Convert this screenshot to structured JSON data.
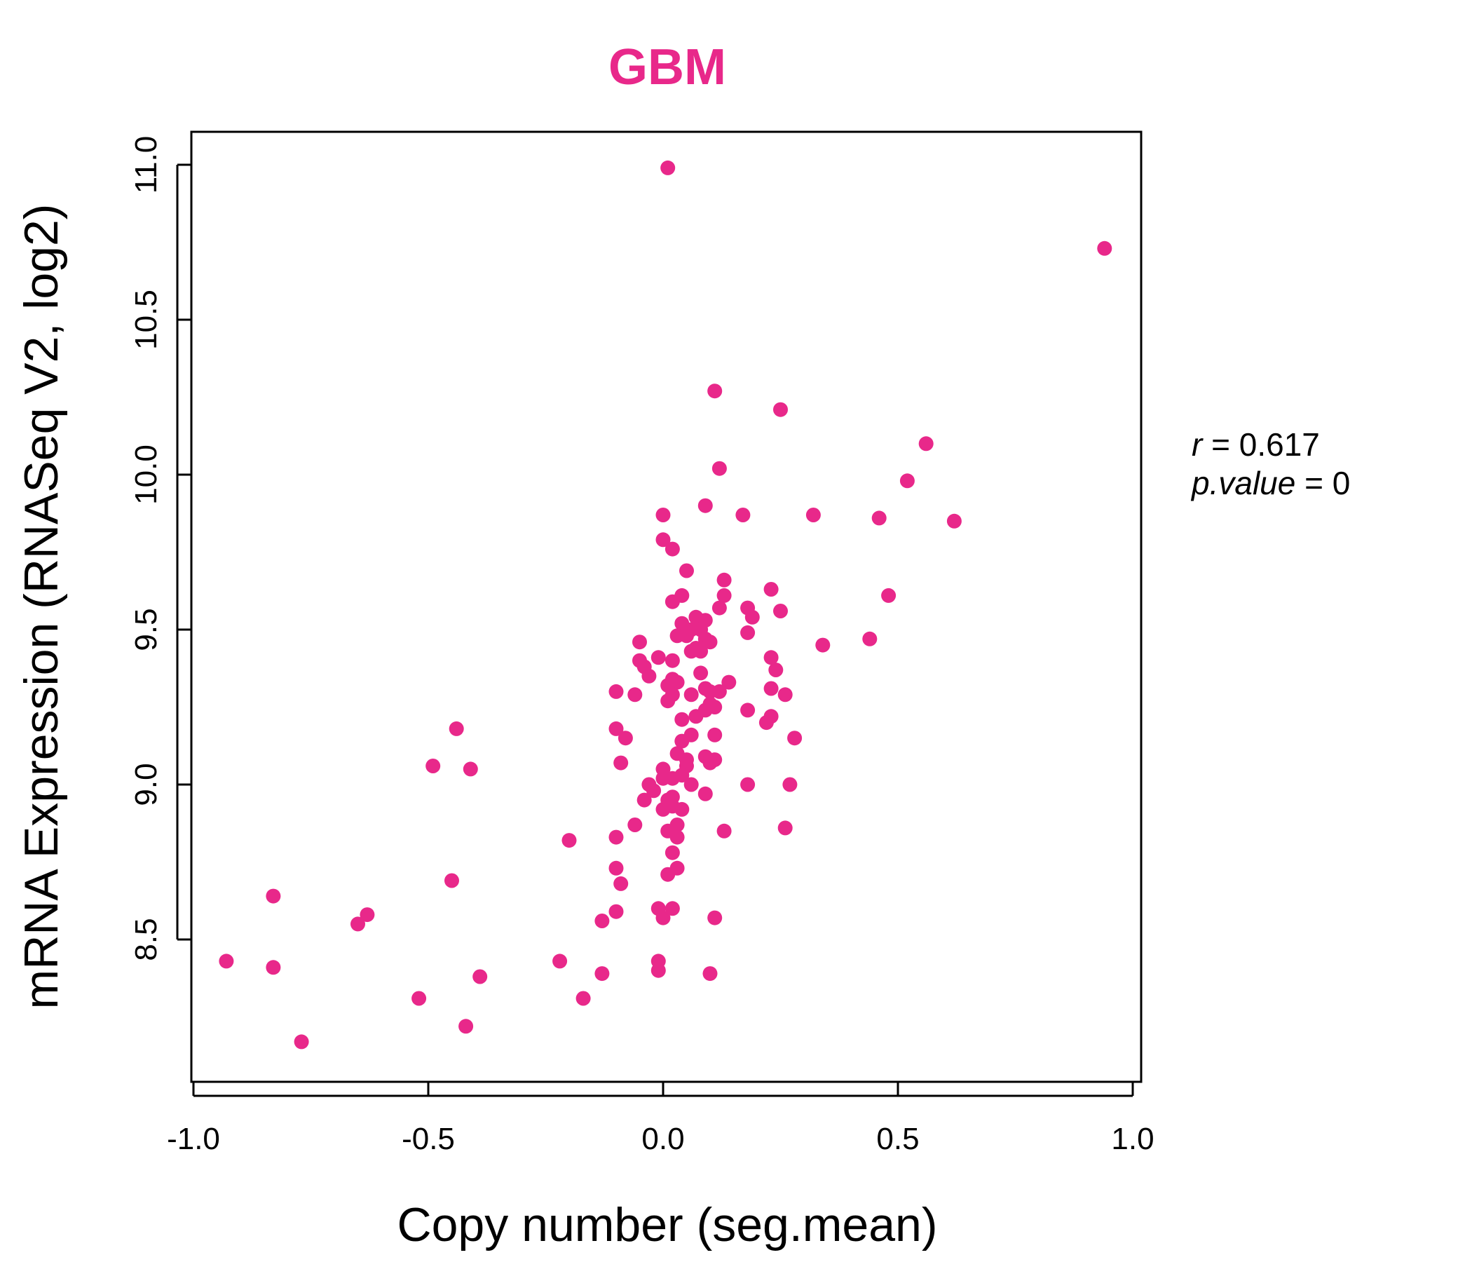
{
  "chart_data": {
    "type": "scatter",
    "title": "GBM",
    "xlabel": "Copy number (seg.mean)",
    "ylabel": "mRNA Expression (RNASeq V2, log2)",
    "xlim": [
      -1.0,
      1.0
    ],
    "ylim": [
      8.1,
      11.1
    ],
    "x_ticks": [
      "-1.0",
      "-0.5",
      "0.0",
      "0.5",
      "1.0"
    ],
    "y_ticks": [
      "8.5",
      "9.0",
      "9.5",
      "10.0",
      "10.5",
      "11.0"
    ],
    "grid": false,
    "color": "#E8288A",
    "annotation": {
      "r_label": "r",
      "r_value": "0.617",
      "p_label": "p.value",
      "p_value": "0"
    },
    "points": [
      [
        0.01,
        10.99
      ],
      [
        0.94,
        10.73
      ],
      [
        0.11,
        10.27
      ],
      [
        0.25,
        10.21
      ],
      [
        0.56,
        10.1
      ],
      [
        0.52,
        9.98
      ],
      [
        0.12,
        10.02
      ],
      [
        0.62,
        9.85
      ],
      [
        0.46,
        9.86
      ],
      [
        0.32,
        9.87
      ],
      [
        0.17,
        9.87
      ],
      [
        0.09,
        9.9
      ],
      [
        0.0,
        9.87
      ],
      [
        0.0,
        9.79
      ],
      [
        0.02,
        9.76
      ],
      [
        0.05,
        9.69
      ],
      [
        0.13,
        9.66
      ],
      [
        0.23,
        9.63
      ],
      [
        0.48,
        9.61
      ],
      [
        0.04,
        9.61
      ],
      [
        0.13,
        9.61
      ],
      [
        0.02,
        9.59
      ],
      [
        0.12,
        9.57
      ],
      [
        0.18,
        9.57
      ],
      [
        0.25,
        9.56
      ],
      [
        0.19,
        9.54
      ],
      [
        0.07,
        9.54
      ],
      [
        0.09,
        9.53
      ],
      [
        0.04,
        9.52
      ],
      [
        0.06,
        9.5
      ],
      [
        0.08,
        9.5
      ],
      [
        0.03,
        9.48
      ],
      [
        0.05,
        9.48
      ],
      [
        0.18,
        9.49
      ],
      [
        0.44,
        9.47
      ],
      [
        0.09,
        9.47
      ],
      [
        0.1,
        9.46
      ],
      [
        0.07,
        9.44
      ],
      [
        0.34,
        9.45
      ],
      [
        -0.05,
        9.46
      ],
      [
        0.06,
        9.43
      ],
      [
        0.08,
        9.43
      ],
      [
        -0.01,
        9.41
      ],
      [
        0.02,
        9.4
      ],
      [
        0.23,
        9.41
      ],
      [
        -0.05,
        9.4
      ],
      [
        -0.04,
        9.38
      ],
      [
        0.24,
        9.37
      ],
      [
        0.08,
        9.36
      ],
      [
        -0.03,
        9.35
      ],
      [
        0.02,
        9.34
      ],
      [
        0.03,
        9.33
      ],
      [
        0.14,
        9.33
      ],
      [
        0.01,
        9.32
      ],
      [
        0.09,
        9.31
      ],
      [
        0.23,
        9.31
      ],
      [
        0.1,
        9.3
      ],
      [
        0.12,
        9.3
      ],
      [
        -0.1,
        9.3
      ],
      [
        0.02,
        9.29
      ],
      [
        0.06,
        9.29
      ],
      [
        0.26,
        9.29
      ],
      [
        -0.06,
        9.29
      ],
      [
        0.01,
        9.27
      ],
      [
        0.11,
        9.25
      ],
      [
        0.1,
        9.26
      ],
      [
        0.18,
        9.24
      ],
      [
        0.09,
        9.24
      ],
      [
        0.23,
        9.22
      ],
      [
        0.07,
        9.22
      ],
      [
        0.04,
        9.21
      ],
      [
        0.22,
        9.2
      ],
      [
        -0.44,
        9.18
      ],
      [
        -0.1,
        9.18
      ],
      [
        0.06,
        9.16
      ],
      [
        0.11,
        9.16
      ],
      [
        0.28,
        9.15
      ],
      [
        -0.08,
        9.15
      ],
      [
        0.04,
        9.14
      ],
      [
        0.03,
        9.1
      ],
      [
        0.09,
        9.09
      ],
      [
        0.11,
        9.08
      ],
      [
        0.05,
        9.08
      ],
      [
        -0.09,
        9.07
      ],
      [
        0.1,
        9.07
      ],
      [
        0.05,
        9.06
      ],
      [
        -0.49,
        9.06
      ],
      [
        -0.41,
        9.05
      ],
      [
        0.0,
        9.05
      ],
      [
        0.04,
        9.03
      ],
      [
        0.02,
        9.02
      ],
      [
        0.0,
        9.02
      ],
      [
        0.06,
        9.0
      ],
      [
        0.18,
        9.0
      ],
      [
        -0.03,
        9.0
      ],
      [
        0.27,
        9.0
      ],
      [
        -0.02,
        8.98
      ],
      [
        0.09,
        8.97
      ],
      [
        0.02,
        8.96
      ],
      [
        0.01,
        8.95
      ],
      [
        -0.04,
        8.95
      ],
      [
        0.02,
        8.93
      ],
      [
        0.0,
        8.92
      ],
      [
        0.04,
        8.92
      ],
      [
        -0.06,
        8.87
      ],
      [
        0.03,
        8.87
      ],
      [
        0.26,
        8.86
      ],
      [
        0.13,
        8.85
      ],
      [
        0.01,
        8.85
      ],
      [
        0.03,
        8.83
      ],
      [
        -0.1,
        8.83
      ],
      [
        -0.2,
        8.82
      ],
      [
        0.02,
        8.78
      ],
      [
        -0.1,
        8.73
      ],
      [
        0.03,
        8.73
      ],
      [
        0.01,
        8.71
      ],
      [
        -0.45,
        8.69
      ],
      [
        -0.09,
        8.68
      ],
      [
        -0.83,
        8.64
      ],
      [
        -0.01,
        8.6
      ],
      [
        0.02,
        8.6
      ],
      [
        -0.1,
        8.59
      ],
      [
        -0.63,
        8.58
      ],
      [
        0.0,
        8.57
      ],
      [
        0.11,
        8.57
      ],
      [
        -0.13,
        8.56
      ],
      [
        -0.65,
        8.55
      ],
      [
        -0.93,
        8.43
      ],
      [
        -0.22,
        8.43
      ],
      [
        -0.01,
        8.43
      ],
      [
        -0.83,
        8.41
      ],
      [
        -0.01,
        8.4
      ],
      [
        -0.13,
        8.39
      ],
      [
        0.1,
        8.39
      ],
      [
        -0.39,
        8.38
      ],
      [
        -0.52,
        8.31
      ],
      [
        -0.17,
        8.31
      ],
      [
        -0.42,
        8.22
      ],
      [
        -0.77,
        8.17
      ]
    ]
  }
}
